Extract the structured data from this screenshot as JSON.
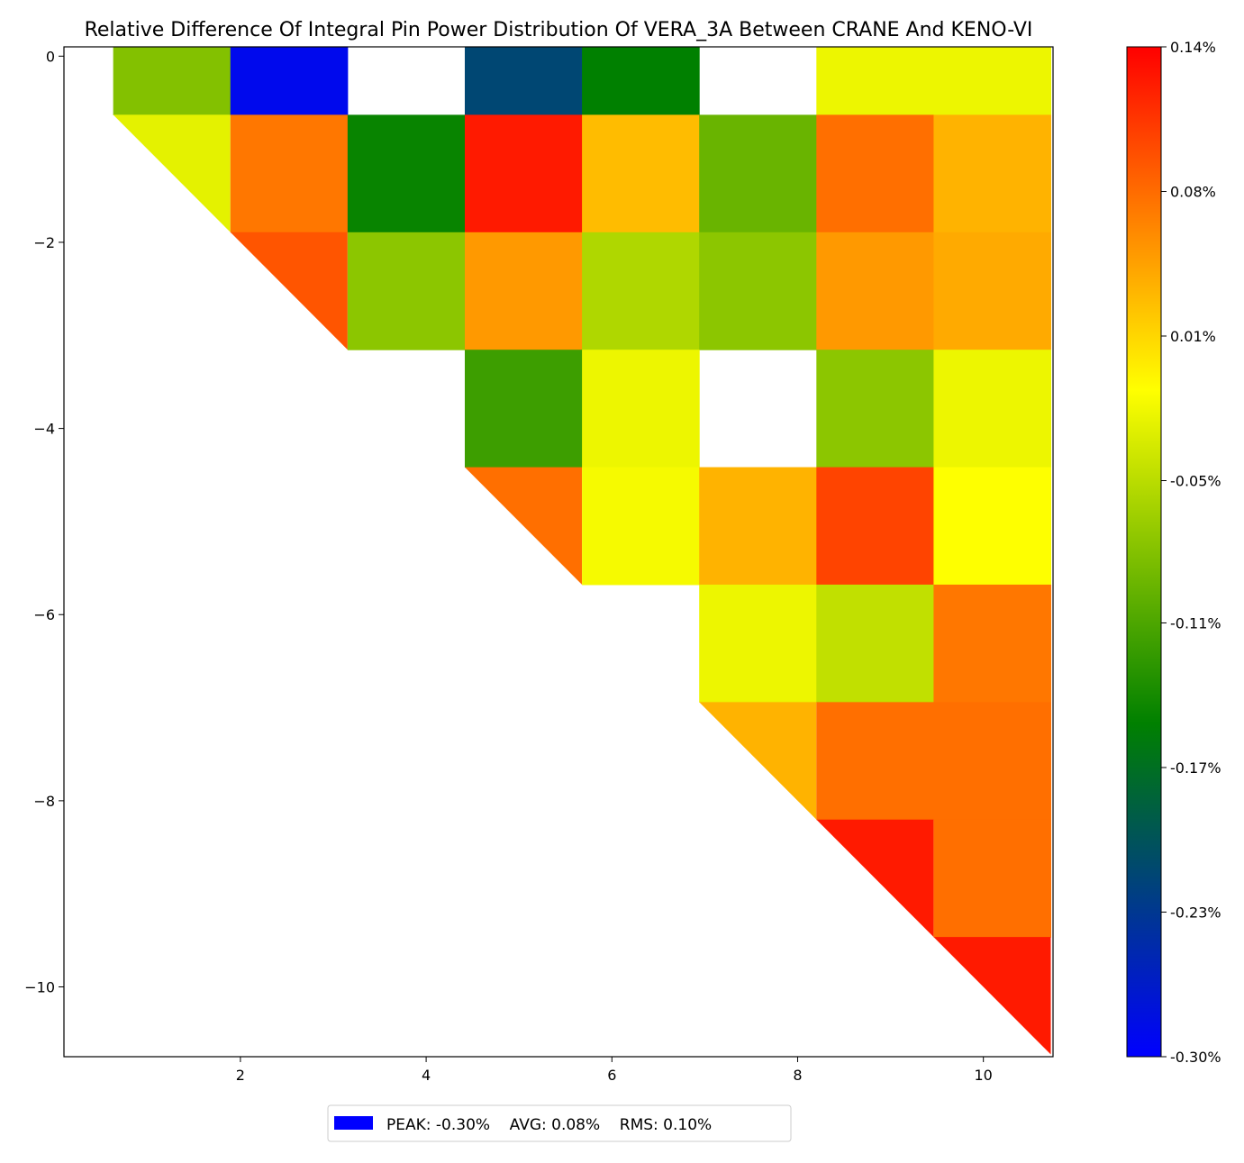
{
  "chart_data": {
    "type": "heatmap",
    "title": "Relative Difference Of Integral Pin Power Distribution Of VERA_3A Between CRANE And KENO-VI",
    "xlim": [
      0.1,
      10.75
    ],
    "ylim": [
      -10.75,
      0.1
    ],
    "x_ticks": [
      "2",
      "4",
      "6",
      "8",
      "10"
    ],
    "y_ticks": [
      "0",
      "−2",
      "−4",
      "−6",
      "−8",
      "−10"
    ],
    "colorbar": {
      "min": -0.3,
      "max": 0.14,
      "tick_labels": [
        "0.14%",
        "0.08%",
        "0.01%",
        "-0.05%",
        "-0.11%",
        "-0.17%",
        "-0.23%",
        "-0.30%"
      ],
      "tick_values": [
        0.14,
        0.077,
        0.014,
        -0.049,
        -0.111,
        -0.174,
        -0.237,
        -0.3
      ],
      "colors": [
        "#0000ff",
        "#008000",
        "#ffff00",
        "#ff0000"
      ]
    },
    "cells": [
      {
        "row": 0,
        "col": 1,
        "value": -0.08
      },
      {
        "row": 0,
        "col": 2,
        "value": -0.29
      },
      {
        "row": 0,
        "col": 4,
        "value": -0.22
      },
      {
        "row": 0,
        "col": 5,
        "value": -0.155
      },
      {
        "row": 0,
        "col": 7,
        "value": -0.02
      },
      {
        "row": 0,
        "col": 8,
        "value": -0.02
      },
      {
        "row": 1,
        "col": 1,
        "value": -0.025,
        "shape": "triangle"
      },
      {
        "row": 1,
        "col": 2,
        "value": 0.07
      },
      {
        "row": 1,
        "col": 3,
        "value": -0.15
      },
      {
        "row": 1,
        "col": 4,
        "value": 0.125
      },
      {
        "row": 1,
        "col": 5,
        "value": 0.03
      },
      {
        "row": 1,
        "col": 6,
        "value": -0.095
      },
      {
        "row": 1,
        "col": 7,
        "value": 0.075
      },
      {
        "row": 1,
        "col": 8,
        "value": 0.035
      },
      {
        "row": 2,
        "col": 2,
        "value": 0.09,
        "shape": "triangle"
      },
      {
        "row": 2,
        "col": 3,
        "value": -0.075
      },
      {
        "row": 2,
        "col": 4,
        "value": 0.05
      },
      {
        "row": 2,
        "col": 5,
        "value": -0.055
      },
      {
        "row": 2,
        "col": 6,
        "value": -0.075
      },
      {
        "row": 2,
        "col": 7,
        "value": 0.05
      },
      {
        "row": 2,
        "col": 8,
        "value": 0.04
      },
      {
        "row": 3,
        "col": 4,
        "value": -0.12
      },
      {
        "row": 3,
        "col": 5,
        "value": -0.02
      },
      {
        "row": 3,
        "col": 7,
        "value": -0.075
      },
      {
        "row": 3,
        "col": 8,
        "value": -0.02
      },
      {
        "row": 4,
        "col": 4,
        "value": 0.075,
        "shape": "triangle"
      },
      {
        "row": 4,
        "col": 5,
        "value": -0.015
      },
      {
        "row": 4,
        "col": 6,
        "value": 0.035
      },
      {
        "row": 4,
        "col": 7,
        "value": 0.1
      },
      {
        "row": 4,
        "col": 8,
        "value": -0.01
      },
      {
        "row": 5,
        "col": 6,
        "value": -0.02
      },
      {
        "row": 5,
        "col": 7,
        "value": -0.045
      },
      {
        "row": 5,
        "col": 8,
        "value": 0.07
      },
      {
        "row": 6,
        "col": 6,
        "value": 0.035,
        "shape": "triangle"
      },
      {
        "row": 6,
        "col": 7,
        "value": 0.075
      },
      {
        "row": 6,
        "col": 8,
        "value": 0.075
      },
      {
        "row": 7,
        "col": 7,
        "value": 0.125,
        "shape": "triangle"
      },
      {
        "row": 7,
        "col": 8,
        "value": 0.075
      },
      {
        "row": 8,
        "col": 8,
        "value": 0.125,
        "shape": "triangle"
      }
    ]
  },
  "legend": {
    "swatch_color": "#0000ff",
    "text": "PEAK: -0.30%    AVG: 0.08%    RMS: 0.10%"
  }
}
